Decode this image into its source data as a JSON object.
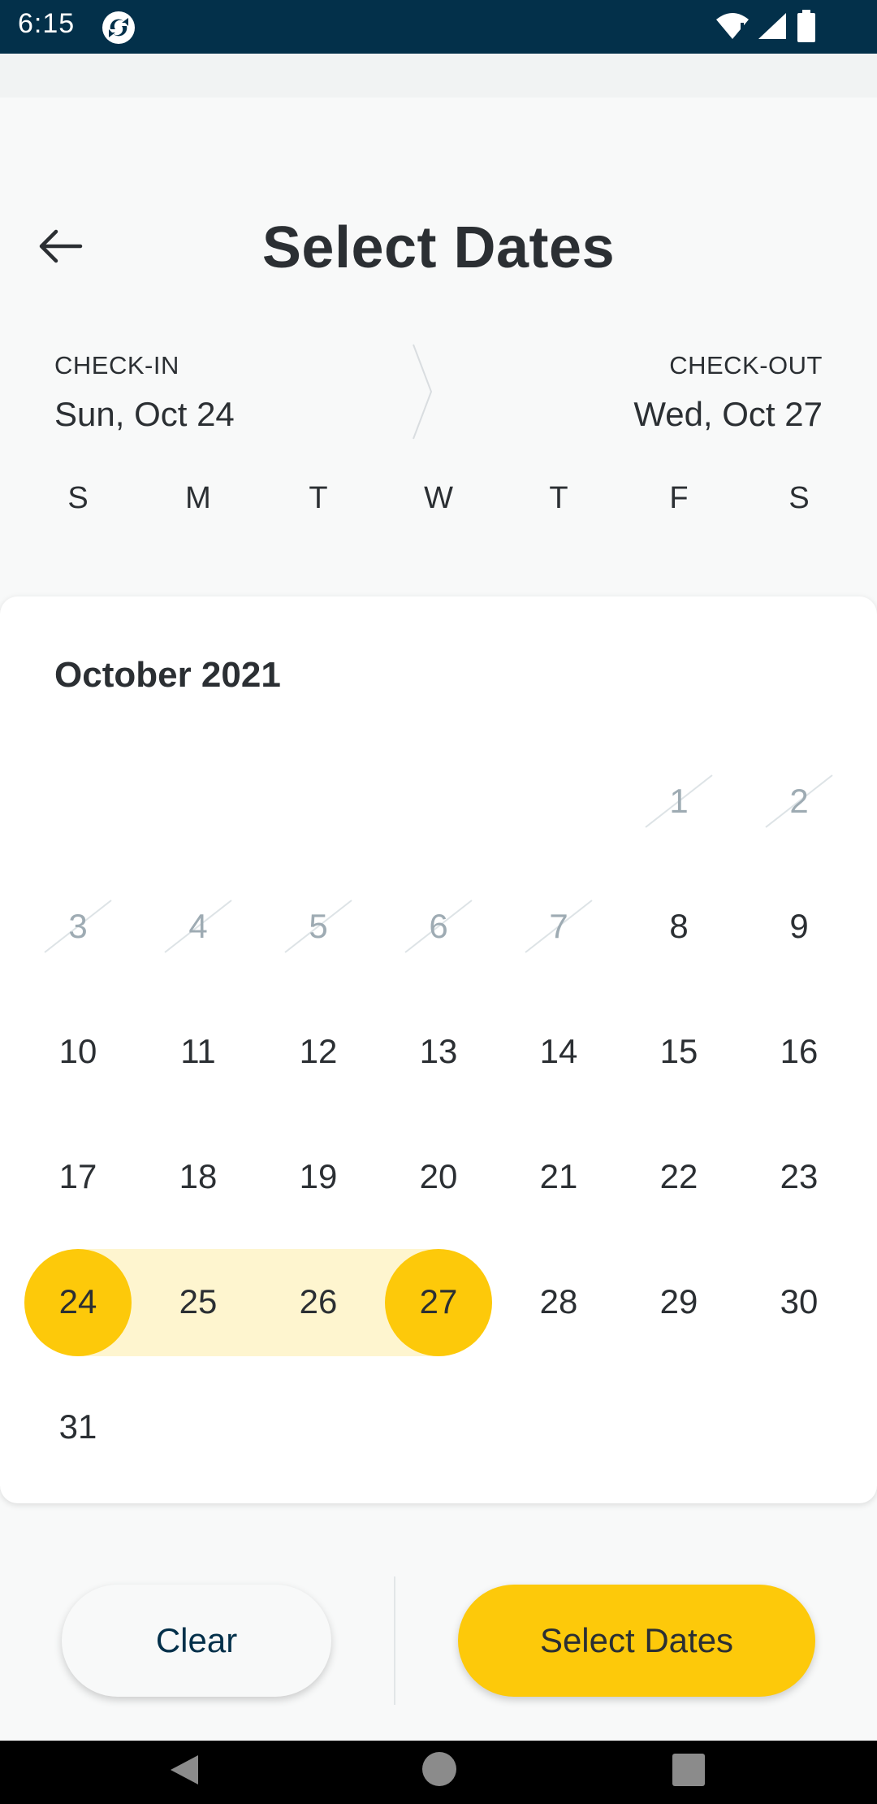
{
  "status_bar": {
    "time": "6:15",
    "icons": [
      "app-logo-icon",
      "wifi-icon",
      "signal-icon",
      "battery-icon"
    ],
    "background": "#03304a"
  },
  "header": {
    "title": "Select Dates",
    "back_icon": "arrow-left-icon"
  },
  "dates": {
    "checkin_label": "CHECK-IN",
    "checkin_value": "Sun, Oct 24",
    "checkout_label": "CHECK-OUT",
    "checkout_value": "Wed, Oct 27"
  },
  "weekdays": [
    "S",
    "M",
    "T",
    "W",
    "T",
    "F",
    "S"
  ],
  "calendar": {
    "month_title": "October 2021",
    "rows": [
      [
        "",
        "",
        "",
        "",
        "",
        "1",
        "2"
      ],
      [
        "3",
        "4",
        "5",
        "6",
        "7",
        "8",
        "9"
      ],
      [
        "10",
        "11",
        "12",
        "13",
        "14",
        "15",
        "16"
      ],
      [
        "17",
        "18",
        "19",
        "20",
        "21",
        "22",
        "23"
      ],
      [
        "24",
        "25",
        "26",
        "27",
        "28",
        "29",
        "30"
      ],
      [
        "31",
        "",
        "",
        "",
        "",
        "",
        ""
      ]
    ],
    "disabled_days": [
      "1",
      "2",
      "3",
      "4",
      "5",
      "6",
      "7"
    ],
    "range_start": "24",
    "range_end": "27",
    "in_range": [
      "25",
      "26"
    ],
    "accent_color": "#fdc90a",
    "range_color": "#fef5cf"
  },
  "actions": {
    "clear_label": "Clear",
    "select_label": "Select Dates"
  },
  "nav_bar": {
    "icons": [
      "nav-back-icon",
      "nav-home-icon",
      "nav-recents-icon"
    ]
  }
}
